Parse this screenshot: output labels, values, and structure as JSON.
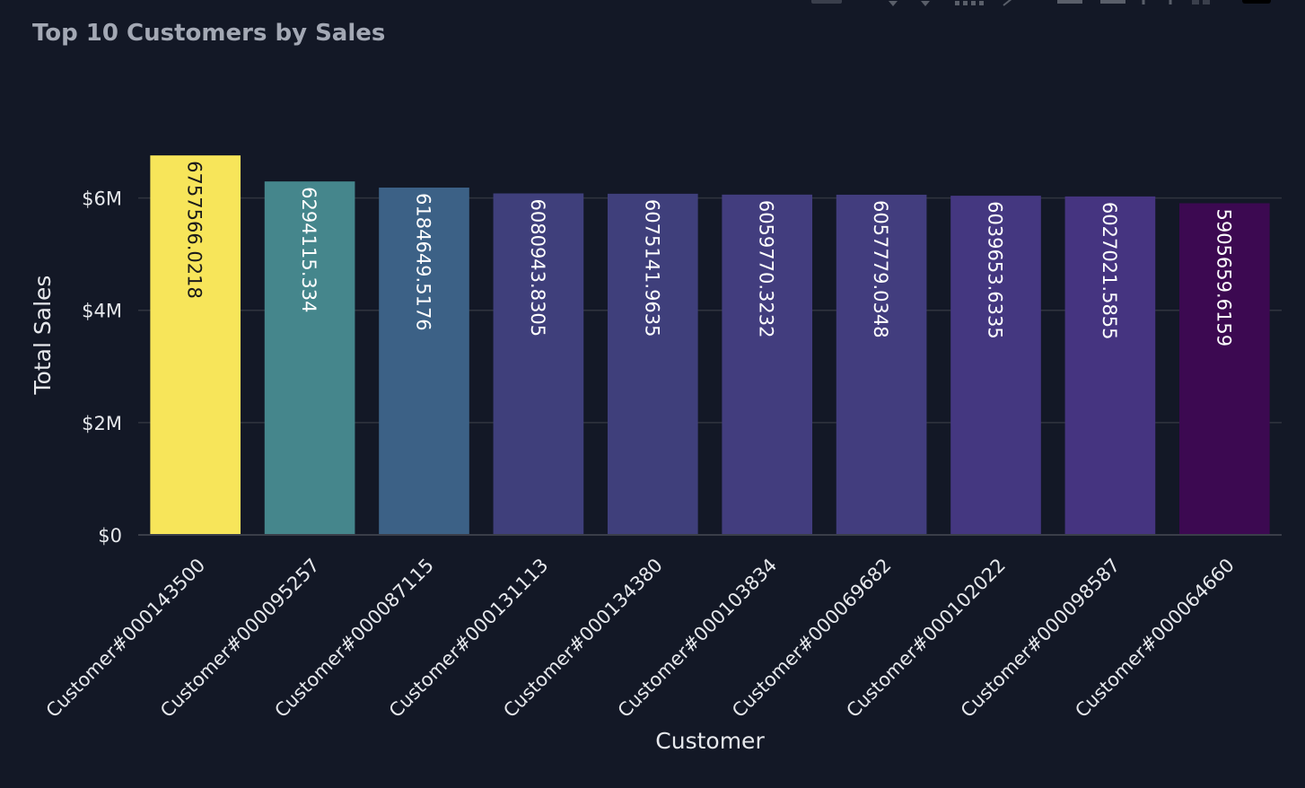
{
  "chart_data": {
    "type": "bar",
    "title": "Top 10 Customers by Sales",
    "xlabel": "Customer",
    "ylabel": "Total Sales",
    "ylim": [
      0,
      7000000
    ],
    "yticks": [
      {
        "value": 0,
        "label": "$0"
      },
      {
        "value": 2000000,
        "label": "$2M"
      },
      {
        "value": 4000000,
        "label": "$4M"
      },
      {
        "value": 6000000,
        "label": "$6M"
      }
    ],
    "grid": true,
    "categories": [
      "Customer#000143500",
      "Customer#000095257",
      "Customer#000087115",
      "Customer#000131113",
      "Customer#000134380",
      "Customer#000103834",
      "Customer#000069682",
      "Customer#000102022",
      "Customer#000098587",
      "Customer#000064660"
    ],
    "values": [
      6757566.0218,
      6294115.334,
      6184649.5176,
      6080943.8305,
      6075141.9635,
      6059770.3232,
      6057779.0348,
      6039653.6335,
      6027021.5855,
      5905659.6159
    ],
    "data_labels": [
      "6757566.0218",
      "6294115.334",
      "6184649.5176",
      "6080943.8305",
      "6075141.9635",
      "6059770.3232",
      "6057779.0348",
      "6039653.6335",
      "6027021.5855",
      "5905659.6159"
    ],
    "bar_colors": [
      "#f7e55a",
      "#45868c",
      "#3c6186",
      "#3f3f7b",
      "#3f3f7b",
      "#423d7e",
      "#423d7e",
      "#443780",
      "#453480",
      "#3c0951"
    ]
  },
  "colors": {
    "background": "#131826",
    "grid": "#30343f",
    "axis_text": "#e6e8ec",
    "title": "#a3a8b4",
    "label_dark": "#1a1a1a",
    "label_light": "#ffffff"
  }
}
